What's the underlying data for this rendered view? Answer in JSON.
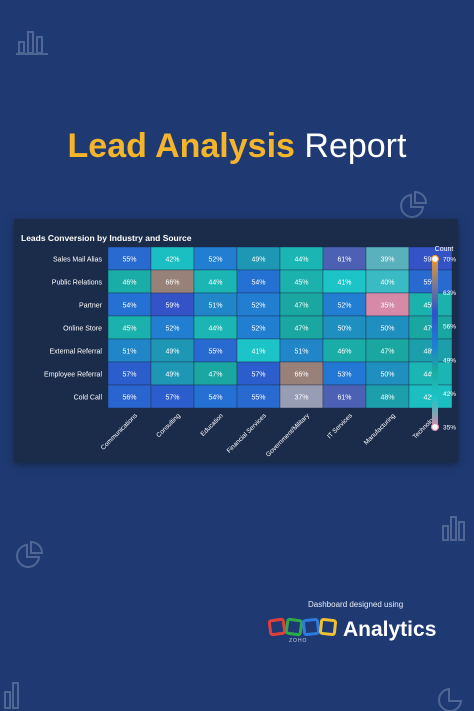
{
  "header": {
    "title_highlight": "Lead Analysis",
    "title_rest": "Report"
  },
  "card": {
    "title": "Leads Conversion by Industry and Source"
  },
  "footer": {
    "caption": "Dashboard designed using",
    "brand_small": "ZOHO",
    "brand": "Analytics"
  },
  "colors": {
    "background": "#1f3a72",
    "card": "#1b2b4a",
    "accent": "#f5b52b"
  },
  "chart_data": {
    "type": "heatmap",
    "title": "Leads Conversion by Industry and Source",
    "x": [
      "Communications",
      "Consulting",
      "Education",
      "Financial Services",
      "Government/Military",
      "IT Services",
      "Manufacturing",
      "Technology"
    ],
    "y": [
      "Sales Mail Alias",
      "Public Relations",
      "Partner",
      "Online Store",
      "External Referral",
      "Employee Referral",
      "Cold Call"
    ],
    "values": [
      [
        55,
        42,
        52,
        49,
        44,
        61,
        39,
        59
      ],
      [
        46,
        66,
        44,
        54,
        45,
        41,
        40,
        55
      ],
      [
        54,
        59,
        51,
        52,
        47,
        52,
        35,
        45
      ],
      [
        45,
        52,
        44,
        52,
        47,
        50,
        50,
        47
      ],
      [
        51,
        49,
        55,
        41,
        51,
        46,
        47,
        48
      ],
      [
        57,
        49,
        47,
        57,
        66,
        53,
        50,
        44
      ],
      [
        56,
        57,
        54,
        55,
        37,
        61,
        48,
        42
      ]
    ],
    "value_suffix": "%",
    "legend": {
      "title": "Count",
      "ticks": [
        "70%",
        "63%",
        "56%",
        "49%",
        "42%",
        "35%"
      ],
      "range": [
        35,
        70
      ],
      "placement": "right"
    }
  }
}
